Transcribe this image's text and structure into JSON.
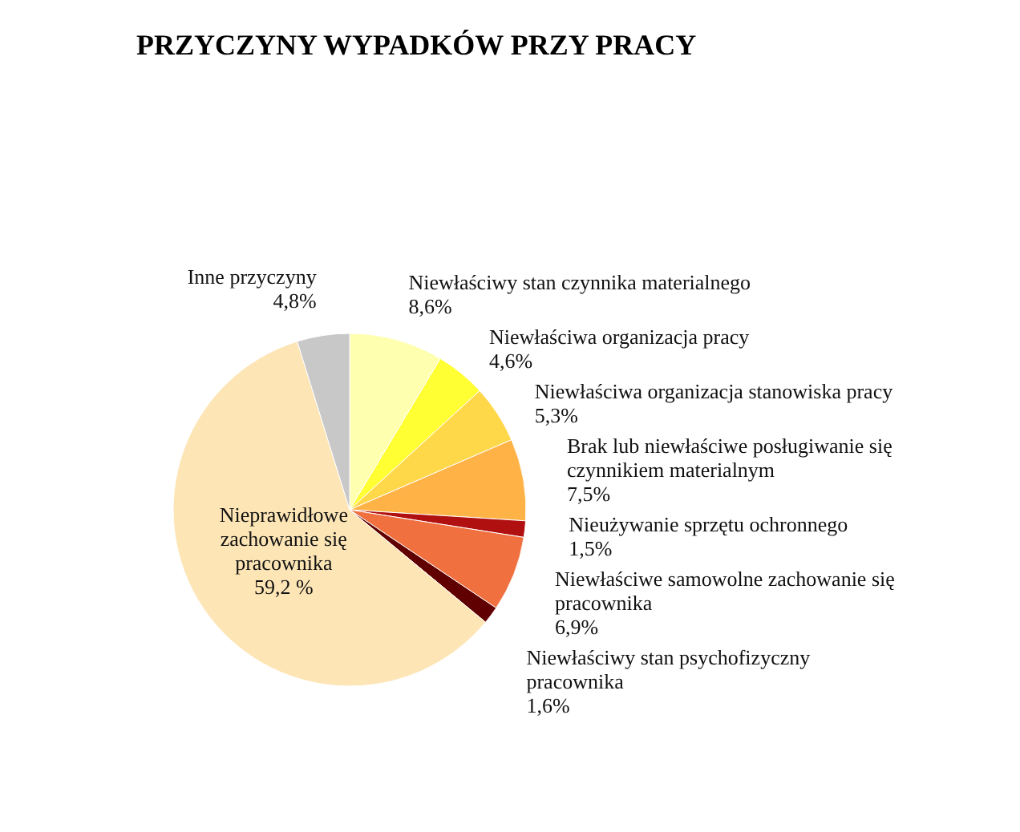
{
  "chart_data": {
    "type": "pie",
    "title": "PRZYCZYNY WYPADKÓW PRZY PRACY",
    "categories": [
      "Niewłaściwy stan czynnika materialnego",
      "Niewłaściwa organizacja pracy",
      "Niewłaściwa organizacja stanowiska pracy",
      "Brak lub niewłaściwe posługiwanie się czynnikiem materialnym",
      "Nieużywanie sprzętu ochronnego",
      "Niewłaściwe samowolne zachowanie się pracownika",
      "Niewłaściwy stan psychofizyczny pracownika",
      "Nieprawidłowe zachowanie się pracownika",
      "Inne przyczyny"
    ],
    "values": [
      8.6,
      4.6,
      5.3,
      7.5,
      1.5,
      6.9,
      1.6,
      59.2,
      4.8
    ],
    "value_labels": [
      "8,6%",
      "4,6%",
      "5,3%",
      "7,5%",
      "1,5%",
      "6,9%",
      "1,6%",
      "59,2 %",
      "4,8%"
    ],
    "colors": [
      "#ffffb0",
      "#ffff33",
      "#ffd84a",
      "#ffb347",
      "#b01010",
      "#f07040",
      "#600000",
      "#fde5b5",
      "#c8c8c8"
    ]
  }
}
